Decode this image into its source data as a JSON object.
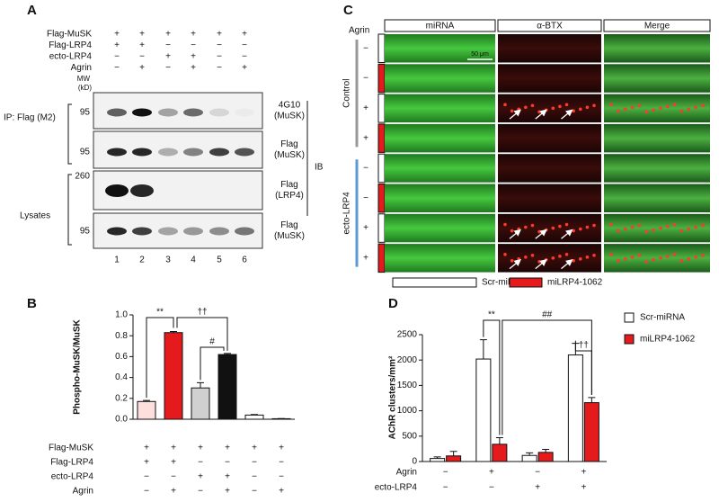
{
  "panel_labels": [
    "A",
    "B",
    "C",
    "D"
  ],
  "panel_a": {
    "conditions": [
      {
        "label": "Flag-MuSK",
        "signs": [
          "+",
          "+",
          "+",
          "+",
          "+",
          "+"
        ]
      },
      {
        "label": "Flag-LRP4",
        "signs": [
          "+",
          "+",
          "−",
          "−",
          "−",
          "−"
        ]
      },
      {
        "label": "ecto-LRP4",
        "signs": [
          "−",
          "−",
          "+",
          "+",
          "−",
          "−"
        ]
      },
      {
        "label": "Agrin",
        "signs": [
          "−",
          "+",
          "−",
          "+",
          "−",
          "+"
        ]
      }
    ],
    "mw_header": [
      "MW",
      "(kD)"
    ],
    "blots": [
      {
        "mw": 95,
        "label": [
          "4G10",
          "(MuSK)"
        ]
      },
      {
        "mw": 95,
        "label": [
          "Flag",
          "(MuSK)"
        ]
      },
      {
        "mw": 260,
        "label": [
          "Flag",
          "(LRP4)"
        ]
      },
      {
        "mw": 95,
        "label": [
          "Flag",
          "(MuSK)"
        ]
      }
    ],
    "ip_label": "IP: Flag (M2)",
    "lysates_label": "Lysates",
    "ib_label": "IB",
    "lanes": [
      1,
      2,
      3,
      4,
      5,
      6
    ]
  },
  "panel_c": {
    "agrin_label": "Agrin",
    "columns": [
      "miRNA",
      "α-BTX",
      "Merge"
    ],
    "column_colors": [
      "#22c022",
      "#e02020",
      "#111111"
    ],
    "rows": [
      "−",
      "−",
      "+",
      "+",
      "−",
      "−",
      "+",
      "+"
    ],
    "groups": [
      "Control",
      "ecto-LRP4"
    ],
    "group_colors": [
      "#999999",
      "#5b9bd5"
    ],
    "scale_bar": "50 μm",
    "legend": [
      {
        "name": "Scr-miRNA",
        "color": "#ffffff"
      },
      {
        "name": "miLRP4-1062",
        "color": "#e41a1c"
      }
    ]
  },
  "chart_data": [
    {
      "type": "bar",
      "ylabel": "Phospho-MuSK/MuSK",
      "ylim": [
        0,
        1
      ],
      "yticks": [
        {
          "value": 0,
          "label": "0.0"
        },
        0.2,
        0.4,
        0.6,
        0.8,
        {
          "value": 1,
          "label": "1.0"
        }
      ],
      "values": [
        0.17,
        0.83,
        0.3,
        0.62,
        0.04,
        0.005
      ],
      "errors": [
        0.01,
        0.01,
        0.05,
        0.01,
        0.005,
        0.002
      ],
      "colors": [
        "#fde0dc",
        "#e41a1c",
        "#d0d0d0",
        "#111111",
        "#ffffff",
        "#ffffff"
      ],
      "conditions": [
        {
          "label": "Flag-MuSK",
          "signs": [
            "+",
            "+",
            "+",
            "+",
            "+",
            "+"
          ]
        },
        {
          "label": "Flag-LRP4",
          "signs": [
            "+",
            "+",
            "−",
            "−",
            "−",
            "−"
          ]
        },
        {
          "label": "ecto-LRP4",
          "signs": [
            "−",
            "−",
            "+",
            "+",
            "−",
            "−"
          ]
        },
        {
          "label": "Agrin",
          "signs": [
            "−",
            "+",
            "−",
            "+",
            "−",
            "+"
          ]
        }
      ],
      "annotations": [
        "**",
        "††",
        "#"
      ]
    },
    {
      "type": "grouped_bar",
      "ylabel": "AChR clusters/mm²",
      "ylim": [
        0,
        2500
      ],
      "yticks": [
        0,
        500,
        1000,
        1500,
        2000,
        2500
      ],
      "series": [
        {
          "name": "Scr-miRNA",
          "color": "#ffffff",
          "values": [
            60,
            2020,
            120,
            2100
          ],
          "errors": [
            30,
            380,
            50,
            230
          ]
        },
        {
          "name": "miLRP4-1062",
          "color": "#e41a1c",
          "values": [
            110,
            340,
            180,
            1160
          ],
          "errors": [
            90,
            130,
            60,
            100
          ]
        }
      ],
      "conditions": [
        {
          "label": "Agrin",
          "signs": [
            "−",
            "+",
            "−",
            "+"
          ]
        },
        {
          "label": "ecto-LRP4",
          "signs": [
            "−",
            "−",
            "+",
            "+"
          ]
        }
      ],
      "annotations": [
        "**",
        "##",
        "††"
      ]
    }
  ]
}
